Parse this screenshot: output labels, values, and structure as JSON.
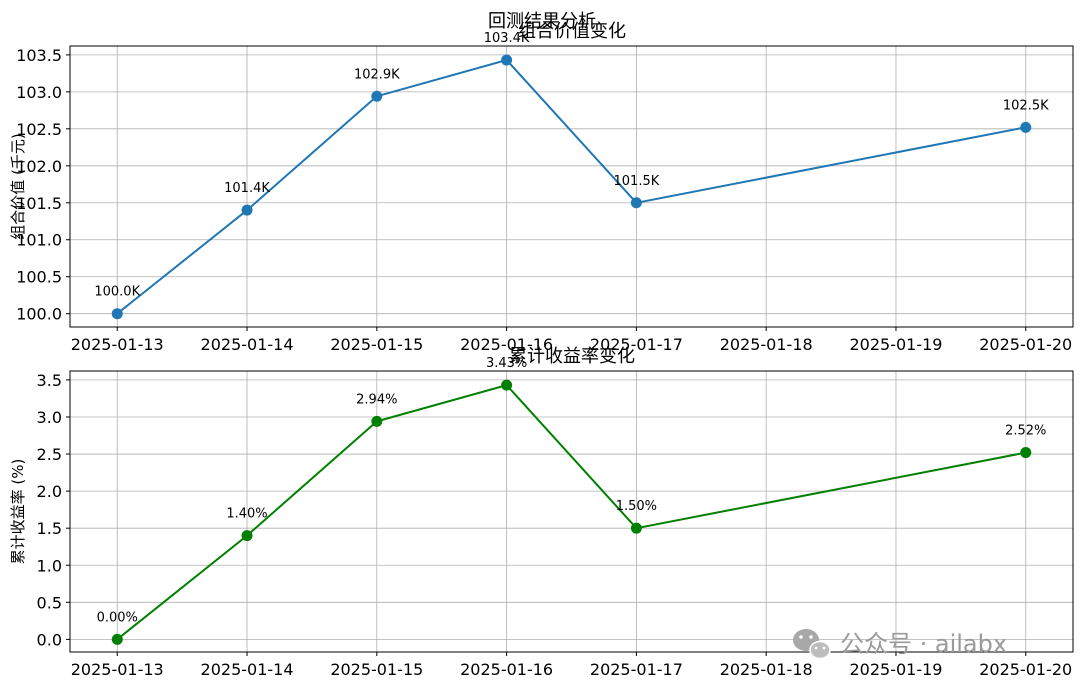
{
  "figure_title": "回测结果分析",
  "watermark": {
    "icon": "wechat-icon",
    "text": "公众号 · ailabx"
  },
  "chart_data": [
    {
      "type": "line",
      "title": "组合价值变化",
      "ylabel": "组合价值 (千元)",
      "xlabel": "",
      "grid": true,
      "color": "#1f77b4",
      "x_ticks": [
        "2025-01-13",
        "2025-01-14",
        "2025-01-15",
        "2025-01-16",
        "2025-01-17",
        "2025-01-18",
        "2025-01-19",
        "2025-01-20"
      ],
      "y_ticks": [
        "100.0",
        "100.5",
        "101.0",
        "101.5",
        "102.0",
        "102.5",
        "103.0",
        "103.5"
      ],
      "ylim": [
        99.82,
        103.62
      ],
      "x": [
        "2025-01-13",
        "2025-01-14",
        "2025-01-15",
        "2025-01-16",
        "2025-01-17",
        "2025-01-20"
      ],
      "values": [
        100.0,
        101.4,
        102.94,
        103.43,
        101.5,
        102.52
      ],
      "labels": [
        "100.0K",
        "101.4K",
        "102.9K",
        "103.4K",
        "101.5K",
        "102.5K"
      ]
    },
    {
      "type": "line",
      "title": "累计收益率变化",
      "ylabel": "累计收益率 (%)",
      "xlabel": "",
      "grid": true,
      "color": "#008000",
      "x_ticks": [
        "2025-01-13",
        "2025-01-14",
        "2025-01-15",
        "2025-01-16",
        "2025-01-17",
        "2025-01-18",
        "2025-01-19",
        "2025-01-20"
      ],
      "y_ticks": [
        "0.0",
        "0.5",
        "1.0",
        "1.5",
        "2.0",
        "2.5",
        "3.0",
        "3.5"
      ],
      "ylim": [
        -0.17,
        3.62
      ],
      "x": [
        "2025-01-13",
        "2025-01-14",
        "2025-01-15",
        "2025-01-16",
        "2025-01-17",
        "2025-01-20"
      ],
      "values": [
        0.0,
        1.4,
        2.94,
        3.43,
        1.5,
        2.52
      ],
      "labels": [
        "0.00%",
        "1.40%",
        "2.94%",
        "3.43%",
        "1.50%",
        "2.52%"
      ]
    }
  ]
}
